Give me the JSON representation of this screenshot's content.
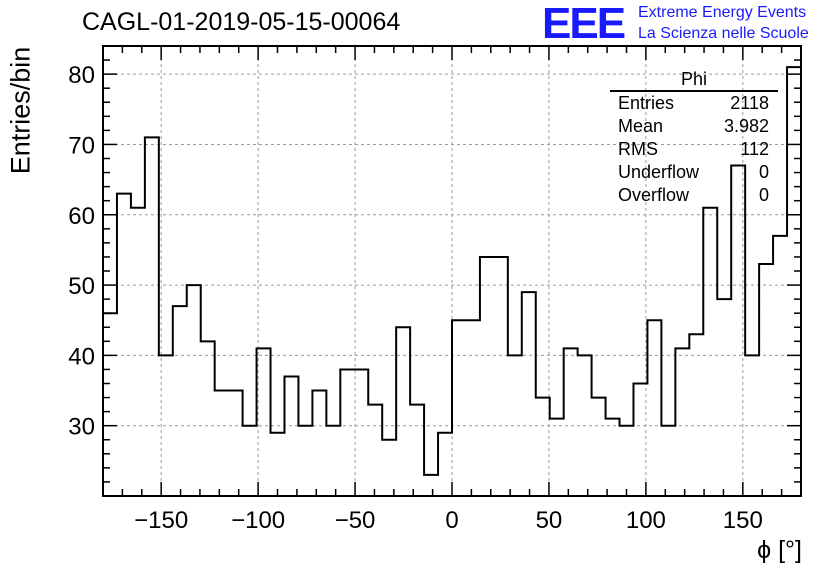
{
  "title": "CAGL-01-2019-05-15-00064",
  "logo": {
    "mark": "EEE",
    "line1": "Extreme Energy Events",
    "line2": "La Scienza nelle Scuole",
    "color": "#1a1aff"
  },
  "stats_box": {
    "title": "Phi",
    "rows": [
      {
        "label": "Entries",
        "value": "2118"
      },
      {
        "label": "Mean",
        "value": "3.982"
      },
      {
        "label": "RMS",
        "value": "112"
      },
      {
        "label": "Underflow",
        "value": "0"
      },
      {
        "label": "Overflow",
        "value": "0"
      }
    ]
  },
  "chart_data": {
    "type": "histogram",
    "xlabel": "ϕ [°]",
    "ylabel": "Entries/bin",
    "xlim": [
      -180,
      180
    ],
    "ylim": [
      20,
      84
    ],
    "bin_width": 7.2,
    "values": [
      46,
      63,
      61,
      71,
      40,
      47,
      50,
      42,
      35,
      35,
      30,
      41,
      29,
      37,
      30,
      35,
      30,
      38,
      38,
      33,
      28,
      44,
      33,
      23,
      29,
      45,
      45,
      54,
      54,
      40,
      49,
      34,
      31,
      41,
      40,
      34,
      31,
      30,
      36,
      45,
      30,
      41,
      43,
      61,
      48,
      67,
      40,
      53,
      57,
      81
    ],
    "xticks": [
      -150,
      -100,
      -50,
      0,
      50,
      100,
      150
    ],
    "xtick_labels": [
      "−150",
      "−100",
      "−50",
      "0",
      "50",
      "100",
      "150"
    ],
    "yticks": [
      30,
      40,
      50,
      60,
      70,
      80
    ],
    "ytick_labels": [
      "30",
      "40",
      "50",
      "60",
      "70",
      "80"
    ],
    "grid": true,
    "line_color": "#000000",
    "grid_color": "#9a9a9a"
  }
}
